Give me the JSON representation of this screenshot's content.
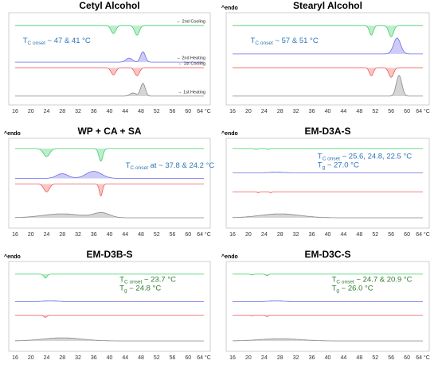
{
  "x_ticks": [
    "16",
    "20",
    "24",
    "28",
    "32",
    "36",
    "40",
    "44",
    "48",
    "52",
    "56",
    "60",
    "64 °C"
  ],
  "panels": [
    {
      "title": "Cetyl Alcohol",
      "annotations": [
        {
          "symbol": "T",
          "sub": "C onset",
          "text": " ~ 47 & 41 °C"
        }
      ],
      "labels": [
        "← 2nd Cooling",
        "→ 2nd Heating",
        "← 1st Cooling",
        "→ 1st Heating"
      ]
    },
    {
      "title": "Stearyl Alcohol",
      "endo": "^endo",
      "annotations": [
        {
          "symbol": "T",
          "sub": "C onset",
          "text": " ~ 57 & 51 °C"
        }
      ]
    },
    {
      "title": "WP + CA + SA",
      "endo": "^endo",
      "annotations": [
        {
          "symbol": "T",
          "sub": "C onset",
          "text": " at ~ 37.8 & 24.2 °C"
        }
      ]
    },
    {
      "title": "EM-D3A-S",
      "endo": "^endo",
      "annotations": [
        {
          "symbol": "T",
          "sub": "C onset",
          "text": " ~ 25.6, 24.8, 22.5 °C"
        },
        {
          "symbol": "T",
          "sub": "g",
          "text": " ~ 27.0 °C"
        }
      ]
    },
    {
      "title": "EM-D3B-S",
      "endo": "^endo",
      "annotations": [
        {
          "symbol": "T",
          "sub": "C onset",
          "text": " ~ 23.7 °C"
        },
        {
          "symbol": "T",
          "sub": "g",
          "text": " ~ 24.8 °C"
        }
      ]
    },
    {
      "title": "EM-D3C-S",
      "endo": "^endo",
      "annotations": [
        {
          "symbol": "T",
          "sub": "C onset",
          "text": " ~ 24.7 & 20.9 °C"
        },
        {
          "symbol": "T",
          "sub": "g",
          "text": " ~ 26.0 °C"
        }
      ]
    }
  ]
}
